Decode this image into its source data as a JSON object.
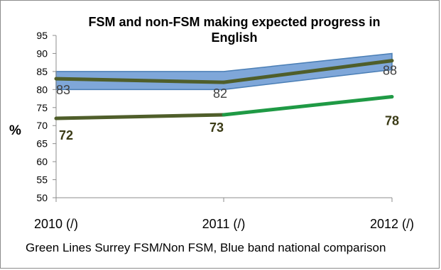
{
  "chart_data": {
    "type": "line",
    "title_lines": [
      "FSM and non-FSM making expected progress in",
      "English"
    ],
    "ylabel": "%",
    "xlabel": "",
    "categories": [
      "2010 (/)",
      "2011 (/)",
      "2012 (/)"
    ],
    "ylim": [
      50,
      95
    ],
    "yticks": [
      50,
      55,
      60,
      65,
      70,
      75,
      80,
      85,
      90,
      95
    ],
    "grid": false,
    "band": {
      "lower": [
        80,
        80,
        85.5
      ],
      "upper": [
        85,
        85,
        90
      ],
      "fill": "#7fa7d9",
      "stroke": "#4a7eb5"
    },
    "series": [
      {
        "values": [
          83,
          82,
          88
        ],
        "labels": [
          "83",
          "82",
          "88"
        ],
        "color": "#4f5e2a"
      },
      {
        "values": [
          72,
          73,
          78
        ],
        "labels": [
          "72",
          "73",
          "78"
        ],
        "color": "#4f5e2a",
        "segment_colors": [
          "#4f5e2a",
          "#1f9a45"
        ]
      }
    ]
  },
  "caption": "Green Lines Surrey FSM/Non FSM, Blue band national comparison"
}
